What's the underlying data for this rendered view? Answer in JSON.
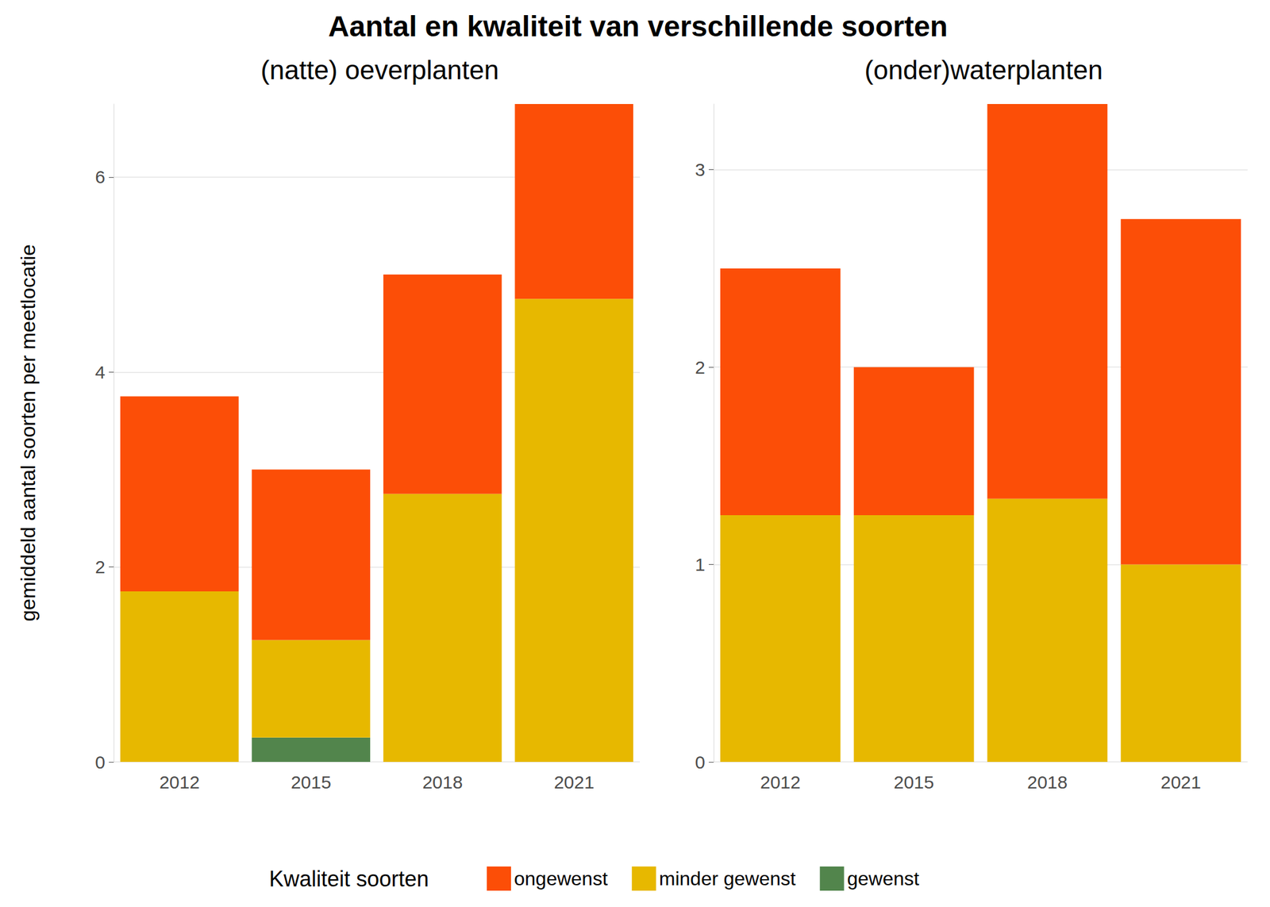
{
  "chart_data": {
    "type": "bar",
    "title": "Aantal en kwaliteit van verschillende soorten",
    "y_label": "gemiddeld aantal soorten per meetlocatie",
    "legend_title": "Kwaliteit soorten",
    "legend": "bottom",
    "stacked": true,
    "grid": true,
    "panels": [
      {
        "subtitle": "(natte) oeverplanten",
        "categories": [
          "2012",
          "2015",
          "2018",
          "2021"
        ],
        "ylim": [
          0,
          6.75
        ],
        "yticks": [
          0,
          2,
          4,
          6
        ],
        "series": [
          {
            "name": "ongewenst",
            "color": "#FC4E07",
            "values": [
              2.0,
              1.75,
              2.25,
              2.0
            ]
          },
          {
            "name": "minder gewenst",
            "color": "#E7B800",
            "values": [
              1.75,
              1.0,
              2.75,
              4.75
            ]
          },
          {
            "name": "gewenst",
            "color": "#52854C",
            "values": [
              0,
              0.25,
              0,
              0
            ]
          }
        ]
      },
      {
        "subtitle": "(onder)waterplanten",
        "categories": [
          "2012",
          "2015",
          "2018",
          "2021"
        ],
        "ylim": [
          0,
          3.333
        ],
        "yticks": [
          0,
          1,
          2,
          3
        ],
        "series": [
          {
            "name": "ongewenst",
            "color": "#FC4E07",
            "values": [
              1.25,
              0.75,
              2.0,
              1.75
            ]
          },
          {
            "name": "minder gewenst",
            "color": "#E7B800",
            "values": [
              1.25,
              1.25,
              1.333,
              1.0
            ]
          },
          {
            "name": "gewenst",
            "color": "#52854C",
            "values": [
              0,
              0,
              0,
              0
            ]
          }
        ]
      }
    ]
  }
}
